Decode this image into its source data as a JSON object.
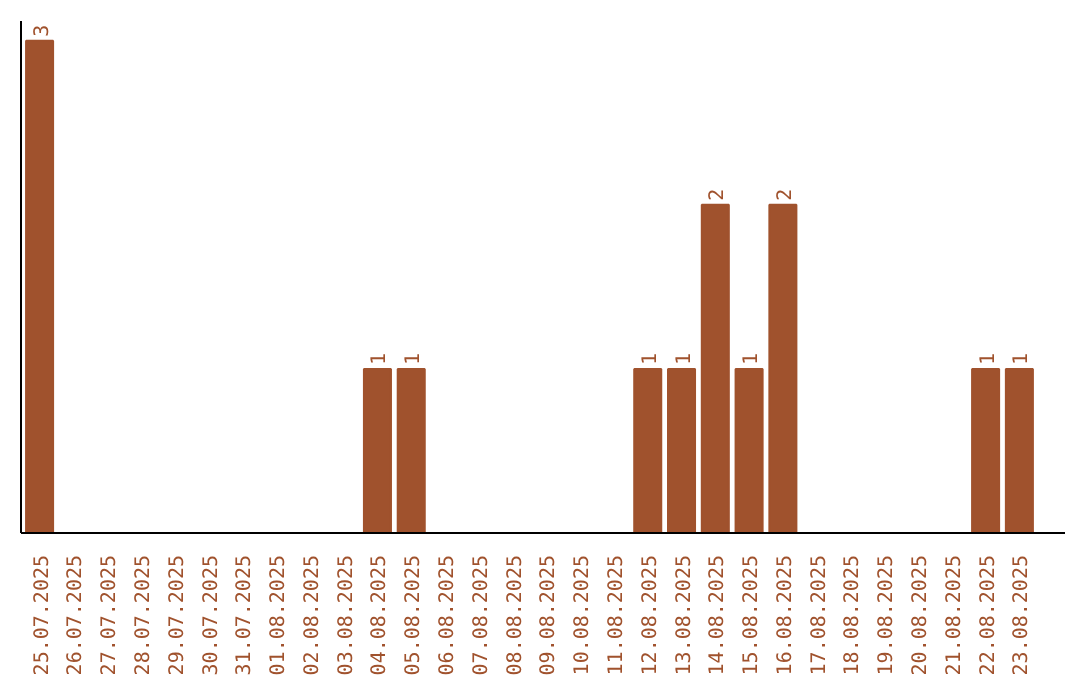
{
  "chart_data": {
    "type": "bar",
    "categories": [
      "25.07.2025",
      "26.07.2025",
      "27.07.2025",
      "28.07.2025",
      "29.07.2025",
      "30.07.2025",
      "31.07.2025",
      "01.08.2025",
      "02.08.2025",
      "03.08.2025",
      "04.08.2025",
      "05.08.2025",
      "06.08.2025",
      "07.08.2025",
      "08.08.2025",
      "09.08.2025",
      "10.08.2025",
      "11.08.2025",
      "12.08.2025",
      "13.08.2025",
      "14.08.2025",
      "15.08.2025",
      "16.08.2025",
      "17.08.2025",
      "18.08.2025",
      "19.08.2025",
      "20.08.2025",
      "21.08.2025",
      "22.08.2025",
      "23.08.2025"
    ],
    "values": [
      3,
      0,
      0,
      0,
      0,
      0,
      0,
      0,
      0,
      0,
      1,
      1,
      0,
      0,
      0,
      0,
      0,
      0,
      1,
      1,
      2,
      1,
      2,
      0,
      0,
      0,
      0,
      0,
      1,
      1
    ],
    "value_labels": [
      "3",
      null,
      null,
      null,
      null,
      null,
      null,
      null,
      null,
      null,
      "1",
      "1",
      null,
      null,
      null,
      null,
      null,
      null,
      "1",
      "1",
      "2",
      "1",
      "2",
      null,
      null,
      null,
      null,
      null,
      "1",
      "1"
    ],
    "color": "#a0522d",
    "grid": false
  }
}
